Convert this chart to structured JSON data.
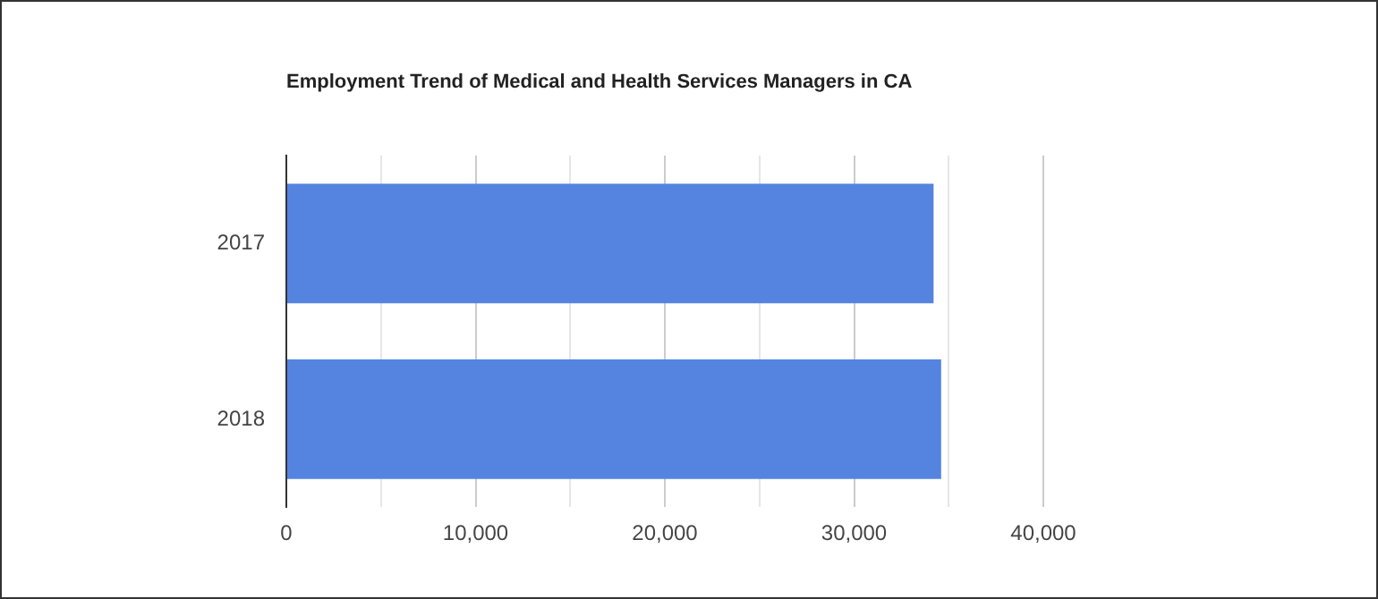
{
  "chart_data": {
    "type": "bar",
    "orientation": "horizontal",
    "title": "Employment Trend of Medical and Health Services Managers in CA",
    "categories": [
      "2017",
      "2018"
    ],
    "values": [
      34200,
      34600
    ],
    "color": "#5484e0",
    "xlim": [
      0,
      40000
    ],
    "xticks": [
      0,
      {
        "value": 5000,
        "label": null
      },
      {
        "value": 10000,
        "label": "10,000"
      },
      {
        "value": 15000,
        "label": null
      },
      {
        "value": 20000,
        "label": "20,000"
      },
      {
        "value": 25000,
        "label": null
      },
      {
        "value": 30000,
        "label": "30,000"
      },
      {
        "value": 35000,
        "label": null
      },
      {
        "value": 40000,
        "label": "40,000"
      }
    ],
    "grid": "x",
    "legend": false
  }
}
